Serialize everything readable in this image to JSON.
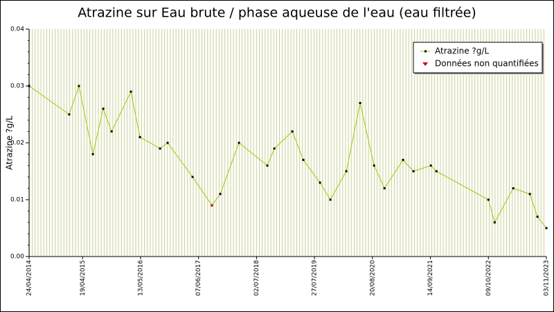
{
  "chart_data": {
    "type": "line",
    "title": "Atrazine sur Eau brute / phase aqueuse de l'eau (eau filtrée)",
    "y_label": "Atrazine ?g/L",
    "x": [
      "2014-04-24",
      "2015-01-19",
      "2015-03-25",
      "2015-06-27",
      "2015-09-05",
      "2015-10-31",
      "2016-03-09",
      "2016-05-09",
      "2016-09-21",
      "2016-11-11",
      "2017-04-28",
      "2017-09-05",
      "2017-10-31",
      "2018-03-06",
      "2018-09-13",
      "2018-10-30",
      "2019-02-28",
      "2019-05-13",
      "2019-09-02",
      "2019-11-11",
      "2020-02-26",
      "2020-05-29",
      "2020-08-31",
      "2020-11-09",
      "2021-03-14",
      "2021-05-23",
      "2021-09-17",
      "2021-10-24",
      "2022-10-09",
      "2022-11-20",
      "2023-03-25",
      "2023-07-15",
      "2023-09-04",
      "2023-11-03"
    ],
    "series": [
      {
        "name": "Atrazine ?g/L",
        "color": "#99cc00",
        "marker_color": "#000000",
        "values": [
          0.03,
          0.025,
          0.03,
          0.018,
          0.026,
          0.022,
          0.029,
          0.021,
          0.019,
          0.02,
          0.014,
          0.009,
          0.011,
          0.02,
          0.016,
          0.019,
          0.022,
          0.017,
          0.013,
          0.01,
          0.015,
          0.027,
          0.016,
          0.012,
          0.017,
          0.015,
          0.016,
          0.015,
          0.01,
          0.006,
          0.012,
          0.011,
          0.007,
          0.005
        ]
      },
      {
        "name": "Données non quantifiées",
        "color": "#cc0000",
        "marker_color": "#cc0000",
        "line": false,
        "values": [
          null,
          null,
          null,
          null,
          null,
          null,
          null,
          null,
          null,
          null,
          null,
          0.009,
          null,
          null,
          null,
          null,
          null,
          null,
          null,
          null,
          null,
          null,
          null,
          null,
          null,
          null,
          null,
          null,
          null,
          null,
          null,
          null,
          null,
          null
        ]
      }
    ],
    "xlim": [
      "2014-04-24",
      "2023-11-03"
    ],
    "xticks": [
      {
        "value": "2014-04-24",
        "label": "24/04/2014"
      },
      {
        "value": "2015-04-19",
        "label": "19/04/2015"
      },
      {
        "value": "2016-05-13",
        "label": "13/05/2016"
      },
      {
        "value": "2017-06-07",
        "label": "07/06/2017"
      },
      {
        "value": "2018-07-02",
        "label": "02/07/2018"
      },
      {
        "value": "2019-07-27",
        "label": "27/07/2019"
      },
      {
        "value": "2020-08-20",
        "label": "20/08/2020"
      },
      {
        "value": "2021-09-14",
        "label": "14/09/2021"
      },
      {
        "value": "2022-10-09",
        "label": "09/10/2022"
      },
      {
        "value": "2023-11-03",
        "label": "03/11/2023"
      }
    ],
    "ylim": [
      0,
      0.04
    ],
    "yticks": [
      {
        "value": 0,
        "label": "0.00"
      },
      0.01,
      0.02,
      0.03,
      0.04
    ],
    "legend": "top-right"
  }
}
